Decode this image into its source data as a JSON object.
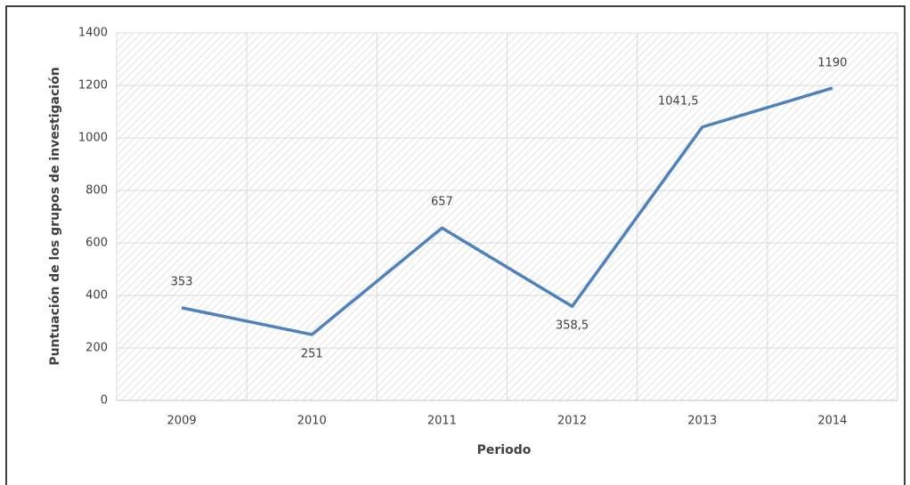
{
  "chart_data": {
    "type": "line",
    "x_label": "Periodo",
    "y_label": "Puntuación de los grupos de investigación",
    "categories": [
      "2009",
      "2010",
      "2011",
      "2012",
      "2013",
      "2014"
    ],
    "values": [
      353,
      251,
      657,
      358.5,
      1041.5,
      1190
    ],
    "value_labels": [
      "353",
      "251",
      "657",
      "358,5",
      "1041,5",
      "1190"
    ],
    "color": "#4f81bd",
    "ylim": [
      0,
      1400
    ],
    "yticks": [
      0,
      200,
      400,
      600,
      800,
      1000,
      1200,
      1400
    ],
    "grid": true
  }
}
